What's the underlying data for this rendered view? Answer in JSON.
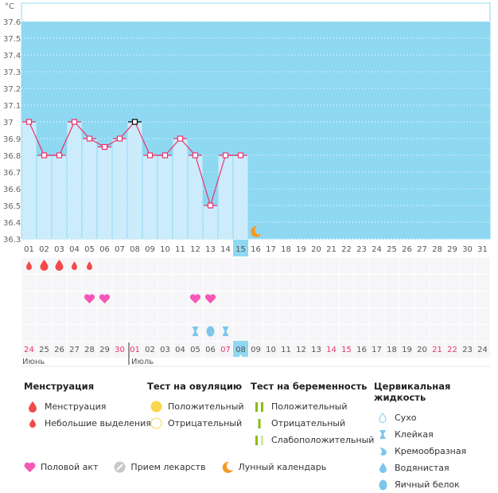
{
  "chart_data": {
    "type": "line",
    "unit_label": "°C",
    "y_ticks": [
      "37.6",
      "37.5",
      "37.4",
      "37.3",
      "37.2",
      "37.1",
      "37",
      "36.9",
      "36.8",
      "36.7",
      "36.6",
      "36.5",
      "36.4",
      "36.3"
    ],
    "ylim": [
      36.3,
      37.6
    ],
    "grid": true,
    "cycle_days": [
      "01",
      "02",
      "03",
      "04",
      "05",
      "06",
      "07",
      "08",
      "09",
      "10",
      "11",
      "12",
      "13",
      "14",
      "15",
      "16",
      "17",
      "18",
      "19",
      "20",
      "21",
      "22",
      "23",
      "24",
      "25",
      "26",
      "27",
      "28",
      "29",
      "30",
      "31"
    ],
    "series": [
      {
        "name": "temperature",
        "values": [
          37.0,
          36.8,
          36.8,
          37.0,
          36.9,
          36.85,
          36.9,
          37.0,
          36.8,
          36.8,
          36.9,
          36.8,
          36.5,
          36.8,
          36.8
        ]
      }
    ],
    "highlight_cycle_day": "15",
    "special_point_day": "08",
    "moon_day": "16",
    "menstruation": {
      "01": "small",
      "02": "large",
      "03": "large",
      "04": "small",
      "05": "small"
    },
    "intercourse_days": [
      "05",
      "06",
      "12",
      "13"
    ],
    "cervical_fluid": {
      "12": "sticky",
      "13": "egg-white",
      "14": "sticky"
    },
    "calendar_dates": [
      "24",
      "25",
      "26",
      "27",
      "28",
      "29",
      "30",
      "01",
      "02",
      "03",
      "04",
      "05",
      "06",
      "07",
      "08",
      "09",
      "10",
      "11",
      "12",
      "13",
      "14",
      "15",
      "16",
      "17",
      "18",
      "19",
      "20",
      "21",
      "22",
      "23",
      "24"
    ],
    "weekend_dates_idx": [
      0,
      6,
      7,
      13,
      20,
      21,
      27,
      28
    ],
    "today_idx": 14,
    "month_labels": [
      {
        "label": "Июнь",
        "idx": 0
      },
      {
        "label": "Июль",
        "idx": 7
      }
    ]
  },
  "colors": {
    "plot_bg": "#8fd8f2",
    "bar": "#ccecfb",
    "line": "#e8336d",
    "highlight": "#8fd8f2",
    "weekend": "#e8336d",
    "moon": "#f59a23",
    "heart": "#f557b7",
    "drop": "#f24a4a",
    "fluid": "#7cc6ec"
  },
  "legend": {
    "menstruation": {
      "title": "Менструация",
      "items": [
        "Менструация",
        "Небольшие выделения"
      ]
    },
    "ovulation": {
      "title": "Тест на овуляцию",
      "items": [
        "Положительный",
        "Отрицательный"
      ]
    },
    "pregnancy": {
      "title": "Тест на беременность",
      "items": [
        "Положительный",
        "Отрицательный",
        "Слабоположительный"
      ]
    },
    "fluid": {
      "title": "Цервикальная жидкость",
      "items": [
        "Сухо",
        "Клейкая",
        "Кремообразная",
        "Водянистая",
        "Яичный белок"
      ]
    },
    "bottom": [
      "Половой акт",
      "Прием лекарств",
      "Лунный календарь"
    ]
  }
}
